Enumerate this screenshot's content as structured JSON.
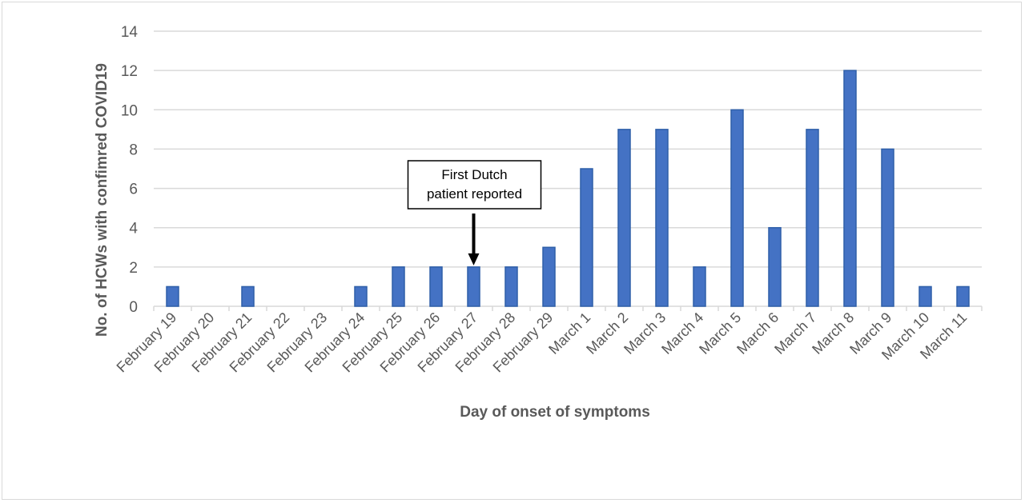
{
  "chart_data": {
    "type": "bar",
    "title": "",
    "xlabel": "Day of onset of symptoms",
    "ylabel": "No. of HCWs with confimred COVID19",
    "ylim": [
      0,
      14
    ],
    "yticks": [
      0,
      2,
      4,
      6,
      8,
      10,
      12,
      14
    ],
    "grid": true,
    "categories": [
      "February 19",
      "February 20",
      "February 21",
      "February 22",
      "February 23",
      "February 24",
      "February 25",
      "February 26",
      "February 27",
      "February 28",
      "February 29",
      "March 1",
      "March 2",
      "March 3",
      "March 4",
      "March 5",
      "March 6",
      "March 7",
      "March 8",
      "March 9",
      "March 10",
      "March 11"
    ],
    "values": [
      1,
      0,
      1,
      0,
      0,
      1,
      2,
      2,
      2,
      2,
      3,
      7,
      9,
      9,
      2,
      10,
      4,
      9,
      12,
      8,
      1,
      1
    ],
    "annotation": {
      "lines": [
        "First Dutch",
        "patient reported"
      ],
      "category": "February 27"
    },
    "colors": {
      "bar_fill": "#4472c4",
      "bar_stroke": "#2e5fa8",
      "grid": "#d9d9d9",
      "text": "#595959"
    }
  }
}
